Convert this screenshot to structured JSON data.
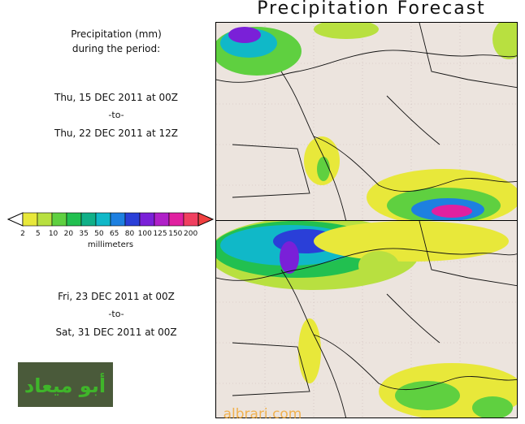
{
  "title": "Precipitation Forecast",
  "caption": {
    "line1": "Precipitation (mm)",
    "line2": "during the period:"
  },
  "periods": [
    {
      "start": "Thu, 15 DEC 2011 at 00Z",
      "separator": "-to-",
      "end": "Thu, 22 DEC 2011 at 12Z"
    },
    {
      "start": "Fri, 23 DEC 2011 at 00Z",
      "separator": "-to-",
      "end": "Sat, 31 DEC 2011 at 00Z"
    }
  ],
  "legend": {
    "unit": "millimeters",
    "ticks": [
      "2",
      "5",
      "10",
      "20",
      "35",
      "50",
      "65",
      "80",
      "100",
      "125",
      "150",
      "200"
    ],
    "colors": [
      "#e8e83a",
      "#b8e040",
      "#5fd040",
      "#22c050",
      "#10b088",
      "#10b8c8",
      "#1d80e0",
      "#2a3fd8",
      "#7a20d8",
      "#b020c8",
      "#e020a0",
      "#f04060"
    ]
  },
  "logo_text": "أبو ميعاد",
  "watermark": "albrari.com"
}
